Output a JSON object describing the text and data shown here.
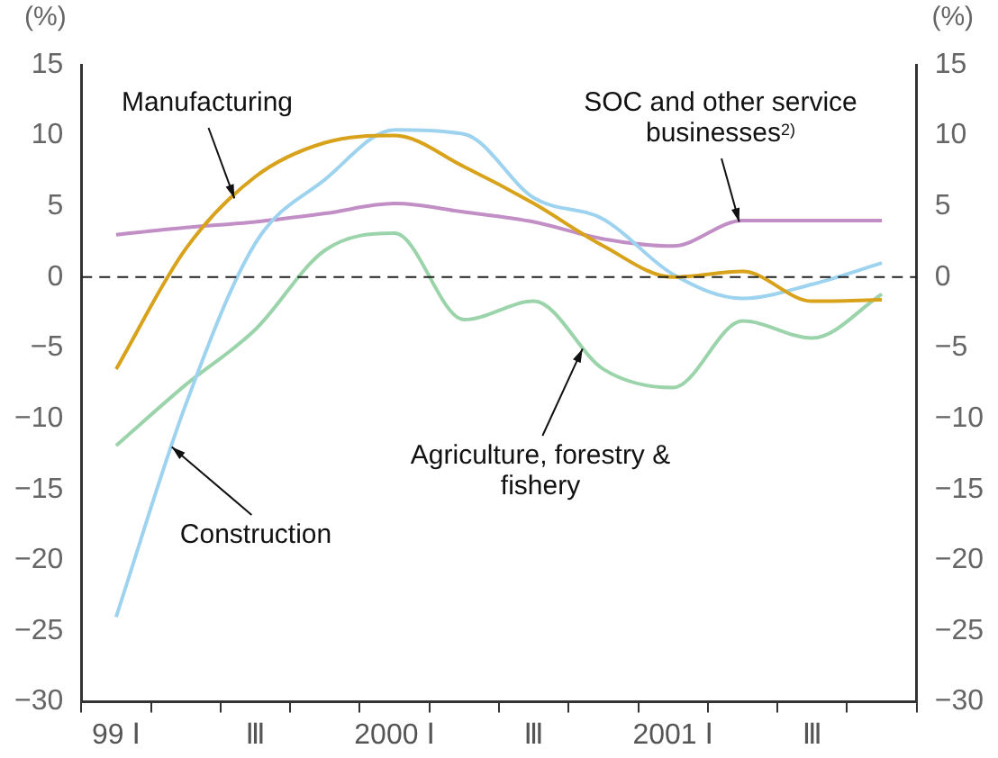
{
  "chart_data": {
    "type": "line",
    "categories": [
      "99 Ⅰ",
      null,
      "Ⅲ",
      null,
      "2000 Ⅰ",
      null,
      "Ⅲ",
      null,
      "2001 Ⅰ",
      null,
      "Ⅲ",
      null
    ],
    "series": [
      {
        "name": "Manufacturing",
        "color": "#d9a21b",
        "values": [
          -6.5,
          2,
          7.1,
          9.5,
          10,
          7.8,
          5.2,
          2.2,
          0,
          0.4,
          -1.7,
          -1.6
        ]
      },
      {
        "name": "Construction",
        "color": "#9ed3f0",
        "values": [
          -24,
          -9,
          2.4,
          6.9,
          10.4,
          10.1,
          5.6,
          4.1,
          0.2,
          -1.5,
          -0.5,
          1
        ]
      },
      {
        "name": "Agriculture, forestry & fishery",
        "color": "#9bd4aa",
        "values": [
          -11.9,
          -7.6,
          -3.7,
          1.9,
          3.1,
          -3,
          -1.7,
          -6.5,
          -7.8,
          -3.1,
          -4.3,
          -1.2
        ]
      },
      {
        "name": "SOC and other service businesses$^{2)}$",
        "color": "#c28ec6",
        "values": [
          3,
          3.5,
          3.9,
          4.5,
          5.2,
          4.6,
          3.9,
          2.7,
          2.2,
          4,
          4,
          4
        ]
      }
    ],
    "ylabel": "(%)",
    "y2label": "(%)",
    "ylim": [
      -30,
      15
    ],
    "yticks": [
      -30,
      -25,
      -20,
      -15,
      -10,
      -5,
      0,
      5,
      10,
      15
    ],
    "y2lim": [
      -30,
      15
    ],
    "y2ticks": [
      -30,
      -25,
      -20,
      -15,
      -10,
      -5,
      0,
      5,
      10,
      15
    ],
    "ref_lines": [
      {
        "axis": "y",
        "value": 0,
        "color": "#222222",
        "line_style": "dashed"
      }
    ],
    "grid": false,
    "legend": false,
    "marker": "none",
    "line_style": "solid"
  }
}
